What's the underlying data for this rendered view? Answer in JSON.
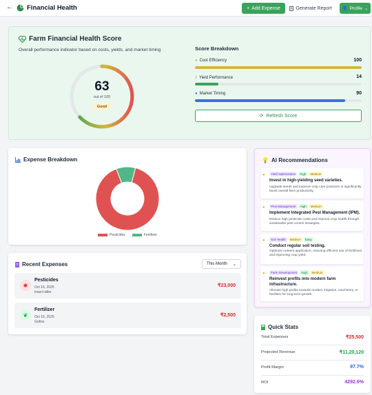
{
  "header": {
    "title": "Financial Health",
    "add_expense": "Add Expense",
    "generate_report": "Generate Report",
    "profile": "Profile"
  },
  "health": {
    "title": "Farm Financial Health Score",
    "subtitle": "Overall performance indicator based on costs, yields, and market timing",
    "score": "63",
    "score_fraction": 0.63,
    "out_of": "out of 100",
    "rating": "Good"
  },
  "score_breakdown": {
    "title": "Score Breakdown",
    "items": [
      {
        "label": "Cost Efficiency",
        "value": "100",
        "fraction": 1.0,
        "color": "#d4b63a"
      },
      {
        "label": "Yield Performance",
        "value": "14",
        "fraction": 0.14,
        "color": "#3aa35c"
      },
      {
        "label": "Market Timing",
        "value": "90",
        "fraction": 0.9,
        "color": "#3b6fe0"
      }
    ],
    "refresh": "Refresh Score"
  },
  "expense_breakdown": {
    "title": "Expense Breakdown"
  },
  "chart_data": {
    "type": "pie",
    "donut": true,
    "categories": [
      "Pesticides",
      "Fertilizer"
    ],
    "values": [
      23000,
      2500
    ],
    "colors": [
      "#e05252",
      "#52b788"
    ],
    "legend": "bottom"
  },
  "recent_expenses": {
    "title": "Recent Expenses",
    "period": "This Month",
    "items": [
      {
        "name": "Pesticides",
        "date": "Oct 16, 2025",
        "note": "insect killer",
        "amount": "₹23,000"
      },
      {
        "name": "Fertilizer",
        "date": "Oct 16, 2025",
        "note": "Gobra",
        "amount": "₹2,500"
      }
    ]
  },
  "ai": {
    "title": "AI Recommendations",
    "items": [
      {
        "category": "Yield Optimization",
        "impact": "High",
        "effort": "Medium",
        "title": "Invest in high-yielding seed varieties.",
        "desc": "Upgrade seeds and improve crop care practices to significantly boost overall farm productivity."
      },
      {
        "category": "Pest Management",
        "impact": "High",
        "effort": "Medium",
        "title": "Implement Integrated Pest Management (IPM).",
        "desc": "Reduce high pesticide costs and improve crop health through sustainable pest control strategies."
      },
      {
        "category": "Soil Health",
        "impact": "Medium",
        "effort": "Easy",
        "title": "Conduct regular soil testing.",
        "desc": "Optimize nutrient application, ensuring efficient use of fertilizers and improving crop yield."
      },
      {
        "category": "Farm Development",
        "impact": "High",
        "effort": "Medium",
        "title": "Reinvest profits into modern farm infrastructure.",
        "desc": "Allocate high profits towards modern irrigation, machinery, or facilities for long-term growth."
      }
    ]
  },
  "quick_stats": {
    "title": "Quick Stats",
    "rows": [
      {
        "label": "Total Expenses",
        "value": "₹25,500",
        "color": "#dc2626"
      },
      {
        "label": "Projected Revenue",
        "value": "₹11,20,120",
        "color": "#16a34a"
      },
      {
        "label": "Profit Margin",
        "value": "97.7%",
        "color": "#2563eb"
      },
      {
        "label": "ROI",
        "value": "4292.6%",
        "color": "#9333ea"
      }
    ]
  }
}
